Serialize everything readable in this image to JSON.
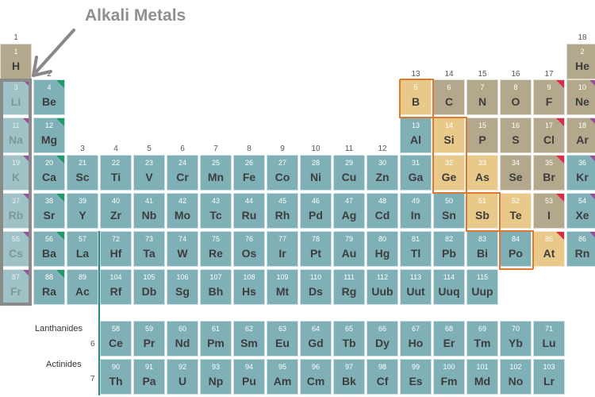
{
  "title": "Alkali Metals",
  "colors": {
    "teal": "#7fb0b6",
    "tan": "#b3a88c",
    "gold": "#e8c989",
    "alkali": "#9fc2c6",
    "highlight_box": "#8a8a8a",
    "metalloid_line": "#e07830"
  },
  "row_labels": {
    "lanthanides": "Lanthanides",
    "actinides": "Actinides"
  },
  "period_labels": [
    "6",
    "7"
  ],
  "groups": [
    "1",
    "2",
    "3",
    "4",
    "5",
    "6",
    "7",
    "8",
    "9",
    "10",
    "11",
    "12",
    "13",
    "14",
    "15",
    "16",
    "17",
    "18"
  ],
  "elements": [
    {
      "n": "1",
      "s": "H",
      "c": "tan"
    },
    {
      "n": "2",
      "s": "He",
      "c": "tan"
    },
    {
      "n": "3",
      "s": "Li",
      "c": "alk",
      "t": "purple"
    },
    {
      "n": "4",
      "s": "Be",
      "c": "teal",
      "t": "green"
    },
    {
      "n": "5",
      "s": "B",
      "c": "gold"
    },
    {
      "n": "6",
      "s": "C",
      "c": "tan"
    },
    {
      "n": "7",
      "s": "N",
      "c": "tan"
    },
    {
      "n": "8",
      "s": "O",
      "c": "tan"
    },
    {
      "n": "9",
      "s": "F",
      "c": "tan",
      "t": "red"
    },
    {
      "n": "10",
      "s": "Ne",
      "c": "tan",
      "t": "purple"
    },
    {
      "n": "11",
      "s": "Na",
      "c": "alk",
      "t": "purple"
    },
    {
      "n": "12",
      "s": "Mg",
      "c": "teal",
      "t": "green"
    },
    {
      "n": "13",
      "s": "Al",
      "c": "teal"
    },
    {
      "n": "14",
      "s": "Si",
      "c": "gold"
    },
    {
      "n": "15",
      "s": "P",
      "c": "tan"
    },
    {
      "n": "16",
      "s": "S",
      "c": "tan"
    },
    {
      "n": "17",
      "s": "Cl",
      "c": "tan",
      "t": "red"
    },
    {
      "n": "18",
      "s": "Ar",
      "c": "tan",
      "t": "purple"
    },
    {
      "n": "19",
      "s": "K",
      "c": "alk",
      "t": "purple"
    },
    {
      "n": "20",
      "s": "Ca",
      "c": "teal",
      "t": "green"
    },
    {
      "n": "21",
      "s": "Sc",
      "c": "teal"
    },
    {
      "n": "22",
      "s": "Ti",
      "c": "teal"
    },
    {
      "n": "23",
      "s": "V",
      "c": "teal"
    },
    {
      "n": "24",
      "s": "Cr",
      "c": "teal"
    },
    {
      "n": "25",
      "s": "Mn",
      "c": "teal"
    },
    {
      "n": "26",
      "s": "Fe",
      "c": "teal"
    },
    {
      "n": "27",
      "s": "Co",
      "c": "teal"
    },
    {
      "n": "28",
      "s": "Ni",
      "c": "teal"
    },
    {
      "n": "29",
      "s": "Cu",
      "c": "teal"
    },
    {
      "n": "30",
      "s": "Zn",
      "c": "teal"
    },
    {
      "n": "31",
      "s": "Ga",
      "c": "teal"
    },
    {
      "n": "32",
      "s": "Ge",
      "c": "gold"
    },
    {
      "n": "33",
      "s": "As",
      "c": "gold"
    },
    {
      "n": "34",
      "s": "Se",
      "c": "tan"
    },
    {
      "n": "35",
      "s": "Br",
      "c": "tan",
      "t": "red"
    },
    {
      "n": "36",
      "s": "Kr",
      "c": "teal",
      "t": "purple"
    },
    {
      "n": "37",
      "s": "Rb",
      "c": "alk",
      "t": "purple"
    },
    {
      "n": "38",
      "s": "Sr",
      "c": "teal",
      "t": "green"
    },
    {
      "n": "39",
      "s": "Y",
      "c": "teal"
    },
    {
      "n": "40",
      "s": "Zr",
      "c": "teal"
    },
    {
      "n": "41",
      "s": "Nb",
      "c": "teal"
    },
    {
      "n": "42",
      "s": "Mo",
      "c": "teal"
    },
    {
      "n": "43",
      "s": "Tc",
      "c": "teal"
    },
    {
      "n": "44",
      "s": "Ru",
      "c": "teal"
    },
    {
      "n": "45",
      "s": "Rh",
      "c": "teal"
    },
    {
      "n": "46",
      "s": "Pd",
      "c": "teal"
    },
    {
      "n": "47",
      "s": "Ag",
      "c": "teal"
    },
    {
      "n": "48",
      "s": "Cd",
      "c": "teal"
    },
    {
      "n": "49",
      "s": "In",
      "c": "teal"
    },
    {
      "n": "50",
      "s": "Sn",
      "c": "teal"
    },
    {
      "n": "51",
      "s": "Sb",
      "c": "gold"
    },
    {
      "n": "52",
      "s": "Te",
      "c": "gold"
    },
    {
      "n": "53",
      "s": "I",
      "c": "tan",
      "t": "red"
    },
    {
      "n": "54",
      "s": "Xe",
      "c": "teal",
      "t": "purple"
    },
    {
      "n": "55",
      "s": "Cs",
      "c": "alk",
      "t": "purple"
    },
    {
      "n": "56",
      "s": "Ba",
      "c": "teal",
      "t": "green"
    },
    {
      "n": "57",
      "s": "La",
      "c": "teal"
    },
    {
      "n": "72",
      "s": "Hf",
      "c": "teal"
    },
    {
      "n": "73",
      "s": "Ta",
      "c": "teal"
    },
    {
      "n": "74",
      "s": "W",
      "c": "teal"
    },
    {
      "n": "75",
      "s": "Re",
      "c": "teal"
    },
    {
      "n": "76",
      "s": "Os",
      "c": "teal"
    },
    {
      "n": "77",
      "s": "Ir",
      "c": "teal"
    },
    {
      "n": "78",
      "s": "Pt",
      "c": "teal"
    },
    {
      "n": "79",
      "s": "Au",
      "c": "teal"
    },
    {
      "n": "80",
      "s": "Hg",
      "c": "teal"
    },
    {
      "n": "81",
      "s": "Tl",
      "c": "teal"
    },
    {
      "n": "82",
      "s": "Pb",
      "c": "teal"
    },
    {
      "n": "83",
      "s": "Bi",
      "c": "teal"
    },
    {
      "n": "84",
      "s": "Po",
      "c": "teal"
    },
    {
      "n": "85",
      "s": "At",
      "c": "gold",
      "t": "red"
    },
    {
      "n": "86",
      "s": "Rn",
      "c": "teal",
      "t": "purple"
    },
    {
      "n": "87",
      "s": "Fr",
      "c": "alk",
      "t": "purple"
    },
    {
      "n": "88",
      "s": "Ra",
      "c": "teal",
      "t": "green"
    },
    {
      "n": "89",
      "s": "Ac",
      "c": "teal"
    },
    {
      "n": "104",
      "s": "Rf",
      "c": "teal"
    },
    {
      "n": "105",
      "s": "Db",
      "c": "teal"
    },
    {
      "n": "106",
      "s": "Sg",
      "c": "teal"
    },
    {
      "n": "107",
      "s": "Bh",
      "c": "teal"
    },
    {
      "n": "108",
      "s": "Hs",
      "c": "teal"
    },
    {
      "n": "109",
      "s": "Mt",
      "c": "teal"
    },
    {
      "n": "110",
      "s": "Ds",
      "c": "teal"
    },
    {
      "n": "111",
      "s": "Rg",
      "c": "teal"
    },
    {
      "n": "112",
      "s": "Uub",
      "c": "teal"
    },
    {
      "n": "113",
      "s": "Uut",
      "c": "teal"
    },
    {
      "n": "114",
      "s": "Uuq",
      "c": "teal"
    },
    {
      "n": "115",
      "s": "Uup",
      "c": "teal"
    }
  ],
  "lanthanides": [
    {
      "n": "58",
      "s": "Ce"
    },
    {
      "n": "59",
      "s": "Pr"
    },
    {
      "n": "60",
      "s": "Nd"
    },
    {
      "n": "61",
      "s": "Pm"
    },
    {
      "n": "62",
      "s": "Sm"
    },
    {
      "n": "63",
      "s": "Eu"
    },
    {
      "n": "64",
      "s": "Gd"
    },
    {
      "n": "65",
      "s": "Tb"
    },
    {
      "n": "66",
      "s": "Dy"
    },
    {
      "n": "67",
      "s": "Ho"
    },
    {
      "n": "68",
      "s": "Er"
    },
    {
      "n": "69",
      "s": "Tm"
    },
    {
      "n": "70",
      "s": "Yb"
    },
    {
      "n": "71",
      "s": "Lu"
    }
  ],
  "actinides": [
    {
      "n": "90",
      "s": "Th"
    },
    {
      "n": "91",
      "s": "Pa"
    },
    {
      "n": "92",
      "s": "U"
    },
    {
      "n": "93",
      "s": "Np"
    },
    {
      "n": "94",
      "s": "Pu"
    },
    {
      "n": "95",
      "s": "Am"
    },
    {
      "n": "96",
      "s": "Cm"
    },
    {
      "n": "97",
      "s": "Bk"
    },
    {
      "n": "98",
      "s": "Cf"
    },
    {
      "n": "99",
      "s": "Es"
    },
    {
      "n": "100",
      "s": "Fm"
    },
    {
      "n": "101",
      "s": "Md"
    },
    {
      "n": "102",
      "s": "No"
    },
    {
      "n": "103",
      "s": "Lr"
    }
  ]
}
